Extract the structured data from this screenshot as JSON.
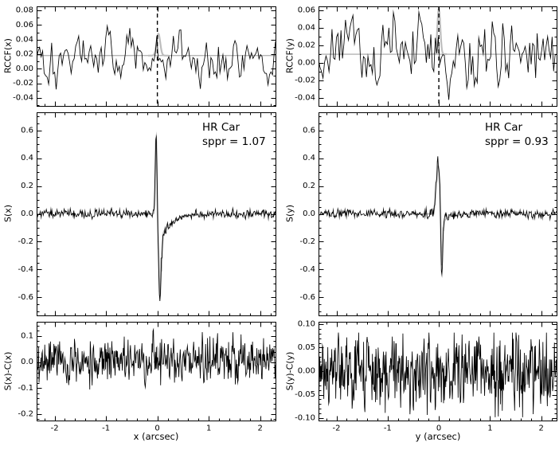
{
  "figure": {
    "target": "HR Car",
    "background": "#ffffff",
    "line_color": "#000000",
    "gray_color": "#bdbdbd"
  },
  "chart_data": {
    "type": "line",
    "layout": "2 columns x 3 rows of panels; left column = x direction, right column = y direction",
    "panels": [
      {
        "id": "rccf-x",
        "ylabel": "RCCF(x)",
        "xlabel": "",
        "xlim": [
          -2.35,
          2.3
        ],
        "ylim": [
          -0.051,
          0.0855
        ],
        "xticks": [
          -2,
          -1,
          0,
          1,
          2
        ],
        "xminor": 0.2,
        "yticks": [
          0.08,
          0.06,
          0.04,
          0.02,
          0.0,
          -0.02,
          -0.04
        ],
        "ytick_labels": [
          "0.08",
          "0.06",
          "0.04",
          "0.02",
          "0.00",
          "-0.02",
          "-0.04"
        ],
        "yminor": 0.01,
        "baseline": 0.018,
        "gray_line": 0.018,
        "gray_bump": {
          "x": 0.02,
          "amp": 0.03,
          "w": 0.05
        },
        "vline_dashed": 0,
        "noise": {
          "seed": 101,
          "n": 160,
          "corr": 0.5,
          "amp": 0.09
        },
        "yclip": [
          -0.045,
          0.06
        ]
      },
      {
        "id": "rccf-y",
        "ylabel": "RCCF(y)",
        "xlabel": "",
        "xlim": [
          -2.35,
          2.3
        ],
        "ylim": [
          -0.049,
          0.0645
        ],
        "xticks": [
          -2,
          -1,
          0,
          1,
          2
        ],
        "xminor": 0.2,
        "yticks": [
          0.06,
          0.04,
          0.02,
          0.0,
          -0.02,
          -0.04
        ],
        "ytick_labels": [
          "0.06",
          "0.04",
          "0.02",
          "0.00",
          "-0.02",
          "-0.04"
        ],
        "yminor": 0.01,
        "baseline": 0.01,
        "gray_line": 0.01,
        "gray_bump": {
          "x": 0.0,
          "amp": 0.052,
          "w": 0.04
        },
        "vline_dashed": 0,
        "noise": {
          "seed": 202,
          "n": 160,
          "corr": 0.45,
          "amp": 0.095
        },
        "yclip": [
          -0.042,
          0.058
        ]
      },
      {
        "id": "s-x",
        "ylabel": "S(x)",
        "xlabel": "",
        "xlim": [
          -2.35,
          2.3
        ],
        "ylim": [
          -0.73,
          0.73
        ],
        "xticks": [
          -2,
          -1,
          0,
          1,
          2
        ],
        "xminor": 0.2,
        "yticks": [
          0.6,
          0.4,
          0.2,
          0.0,
          -0.2,
          -0.4,
          -0.6
        ],
        "ytick_labels": [
          "0.6",
          "0.4",
          "0.2",
          "0.0",
          "-0.2",
          "-0.4",
          "-0.6"
        ],
        "yminor": 0.05,
        "baseline": 0,
        "noise": {
          "seed": 303,
          "n": 470,
          "corr": 0.25,
          "amp": 0.055,
          "center_boost": 0.6
        },
        "feature": {
          "pos": {
            "x": -0.025,
            "amp": 0.6,
            "w": 0.022
          },
          "neg": {
            "x": 0.05,
            "amp": -0.64,
            "w": 0.033
          },
          "tail": {
            "x0": 0.08,
            "amp": -0.17,
            "tau": 0.22
          },
          "gray_scale": 0.92
        },
        "annotation": {
          "title": "HR Car",
          "subtitle": "sppr = 1.07"
        }
      },
      {
        "id": "s-y",
        "ylabel": "S(y)",
        "xlabel": "",
        "xlim": [
          -2.35,
          2.3
        ],
        "ylim": [
          -0.73,
          0.73
        ],
        "xticks": [
          -2,
          -1,
          0,
          1,
          2
        ],
        "xminor": 0.2,
        "yticks": [
          0.6,
          0.4,
          0.2,
          0.0,
          -0.2,
          -0.4,
          -0.6
        ],
        "ytick_labels": [
          "0.6",
          "0.4",
          "0.2",
          "0.0",
          "-0.2",
          "-0.4",
          "-0.6"
        ],
        "yminor": 0.05,
        "baseline": 0,
        "noise": {
          "seed": 404,
          "n": 470,
          "corr": 0.25,
          "amp": 0.055,
          "center_boost": 1.6
        },
        "feature": {
          "pos": {
            "x": -0.01,
            "amp": 0.37,
            "w": 0.055
          },
          "neg": {
            "x": 0.055,
            "amp": -0.48,
            "w": 0.028
          },
          "tail": {
            "x0": 0.09,
            "amp": -0.06,
            "tau": 0.12
          },
          "gray_scale": 0.93
        },
        "annotation": {
          "title": "HR Car",
          "subtitle": "sppr = 0.93"
        }
      },
      {
        "id": "sx-cx",
        "ylabel": "S(x)-C(x)",
        "xlabel": "x (arcsec)",
        "xlim": [
          -2.35,
          2.3
        ],
        "ylim": [
          -0.225,
          0.155
        ],
        "xticks": [
          -2,
          -1,
          0,
          1,
          2
        ],
        "xminor": 0.2,
        "xtick_labels": [
          "-2",
          "-1",
          "0",
          "1",
          "2"
        ],
        "yticks": [
          0.1,
          0.0,
          -0.1,
          -0.2
        ],
        "ytick_labels": [
          "0.1",
          "0.0",
          "-0.1",
          "-0.2"
        ],
        "yminor": 0.02,
        "baseline": 0,
        "gray_bump": {
          "x": 0.0,
          "amp": 0.055,
          "w": 0.018
        },
        "noise": {
          "seed": 505,
          "n": 500,
          "corr": 0.2,
          "amp": 0.16,
          "edge_boost": 0.9
        },
        "yclip": [
          -0.215,
          0.125
        ]
      },
      {
        "id": "sy-cy",
        "ylabel": "S(y)-C(y)",
        "xlabel": "y (arcsec)",
        "xlim": [
          -2.35,
          2.3
        ],
        "ylim": [
          -0.105,
          0.105
        ],
        "xticks": [
          -2,
          -1,
          0,
          1,
          2
        ],
        "xminor": 0.2,
        "xtick_labels": [
          "-2",
          "-1",
          "0",
          "1",
          "2"
        ],
        "yticks": [
          0.1,
          0.05,
          0.0,
          -0.05,
          -0.1
        ],
        "ytick_labels": [
          "0.10",
          "0.05",
          "0.00",
          "-0.05",
          "-0.10"
        ],
        "yminor": 0.01,
        "baseline": 0,
        "noise": {
          "seed": 606,
          "n": 540,
          "corr": 0.1,
          "amp": 0.13
        },
        "yclip": [
          -0.098,
          0.082
        ]
      }
    ]
  }
}
